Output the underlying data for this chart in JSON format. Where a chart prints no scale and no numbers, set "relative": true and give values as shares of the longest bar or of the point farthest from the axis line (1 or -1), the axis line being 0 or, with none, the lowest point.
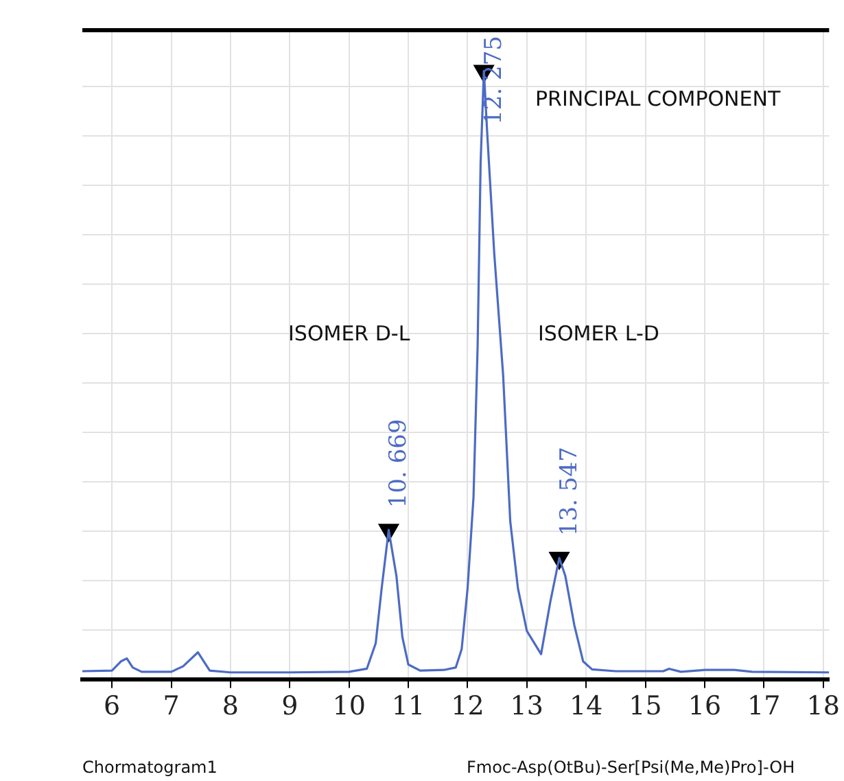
{
  "chart_data": {
    "type": "line",
    "relative": true,
    "grid": true,
    "marker": "none",
    "line_style": "solid",
    "legend": false,
    "xlim": [
      5.5,
      18.1
    ],
    "xticks": [
      6,
      7,
      8,
      9,
      10,
      11,
      12,
      13,
      14,
      15,
      16,
      17,
      18
    ],
    "series": [
      {
        "color": "#4c6bc4",
        "x": [
          5.5,
          6.0,
          6.15,
          6.25,
          6.35,
          6.5,
          7.0,
          7.2,
          7.45,
          7.55,
          7.65,
          8.0,
          9.0,
          10.0,
          10.3,
          10.45,
          10.55,
          10.669,
          10.8,
          10.9,
          11.0,
          11.2,
          11.6,
          11.8,
          11.9,
          12.0,
          12.1,
          12.17,
          12.22,
          12.275,
          12.33,
          12.45,
          12.6,
          12.72,
          12.85,
          13.0,
          13.24,
          13.4,
          13.547,
          13.65,
          13.8,
          13.95,
          14.1,
          14.5,
          15.3,
          15.4,
          15.6,
          16.0,
          16.5,
          16.8,
          18.1
        ],
        "values": [
          0.014,
          0.015,
          0.03,
          0.035,
          0.02,
          0.013,
          0.013,
          0.022,
          0.045,
          0.03,
          0.015,
          0.012,
          0.012,
          0.013,
          0.018,
          0.06,
          0.15,
          0.246,
          0.17,
          0.07,
          0.025,
          0.015,
          0.016,
          0.02,
          0.05,
          0.15,
          0.3,
          0.55,
          0.85,
          1.0,
          0.9,
          0.7,
          0.5,
          0.26,
          0.15,
          0.08,
          0.042,
          0.13,
          0.2,
          0.17,
          0.09,
          0.03,
          0.017,
          0.014,
          0.014,
          0.018,
          0.013,
          0.016,
          0.016,
          0.013,
          0.012
        ]
      },
      {
        "type": "scatter",
        "marker": "triangle",
        "color": "#000000",
        "x": [
          10.669,
          12.275,
          13.547
        ],
        "values": [
          0.246,
          1.0,
          0.2
        ]
      }
    ],
    "annotations": [
      {
        "text": "12. 275",
        "x": 12.275,
        "y": 1.0
      },
      {
        "text": "10. 669",
        "x": 10.669,
        "y": 0.246
      },
      {
        "text": "13. 547",
        "x": 13.547,
        "y": 0.2
      },
      "PRINCIPAL COMPONENT",
      "ISOMER  D-L",
      "ISOMER  L-D",
      "Chormatogram1",
      "Fmoc-Asp(OtBu)-Ser[Psi(Me,Me)Pro]-OH"
    ]
  }
}
